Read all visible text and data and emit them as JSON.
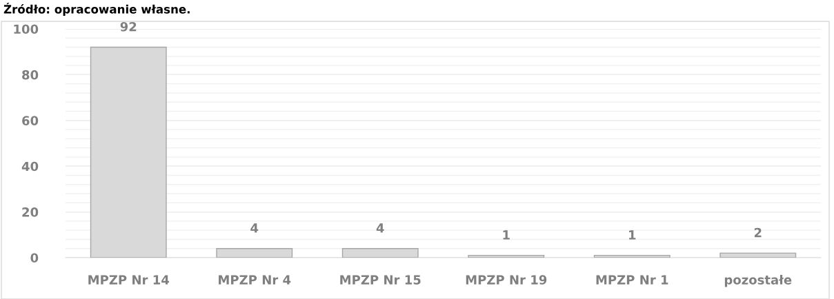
{
  "chart_data": {
    "type": "bar",
    "annotations": [
      "Źródło: opracowanie własne."
    ],
    "categories": [
      "MPZP Nr 14",
      "MPZP Nr 4",
      "MPZP Nr 15",
      "MPZP Nr 19",
      "MPZP Nr 1",
      "pozostałe"
    ],
    "values": [
      92,
      4,
      4,
      1,
      1,
      2
    ],
    "color": "#d9d9d9",
    "data_labels": true,
    "ylim": [
      0,
      100
    ],
    "yticks": [
      0,
      {
        "value": 4,
        "label": null
      },
      {
        "value": 8,
        "label": null
      },
      {
        "value": 12,
        "label": null
      },
      {
        "value": 16,
        "label": null
      },
      20,
      {
        "value": 24,
        "label": null
      },
      {
        "value": 28,
        "label": null
      },
      {
        "value": 32,
        "label": null
      },
      {
        "value": 36,
        "label": null
      },
      40,
      {
        "value": 44,
        "label": null
      },
      {
        "value": 48,
        "label": null
      },
      {
        "value": 52,
        "label": null
      },
      {
        "value": 56,
        "label": null
      },
      60,
      {
        "value": 64,
        "label": null
      },
      {
        "value": 68,
        "label": null
      },
      {
        "value": 72,
        "label": null
      },
      {
        "value": 76,
        "label": null
      },
      80,
      {
        "value": 84,
        "label": null
      },
      {
        "value": 88,
        "label": null
      },
      {
        "value": 92,
        "label": null
      },
      {
        "value": 96,
        "label": null
      },
      100
    ],
    "grid": "y",
    "legend": false
  }
}
